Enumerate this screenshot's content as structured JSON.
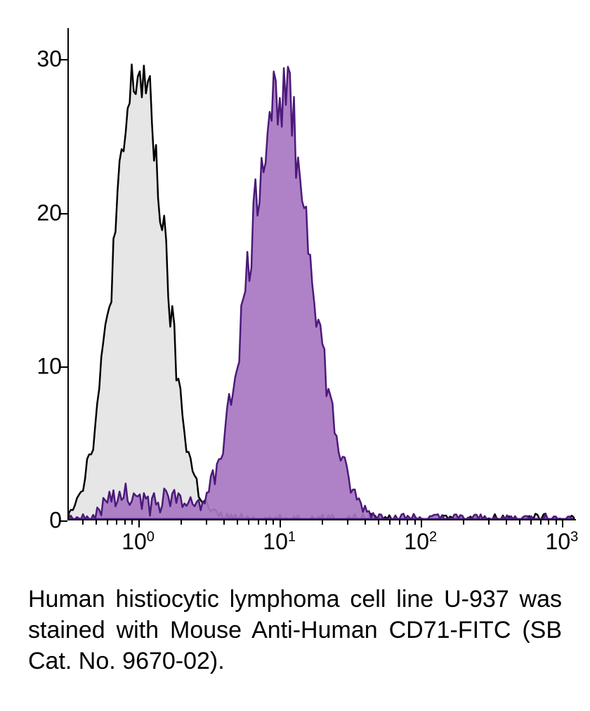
{
  "chart": {
    "type": "histogram",
    "background_color": "#ffffff",
    "axis_color": "#000000",
    "axis_width": 2,
    "y_axis": {
      "min": 0,
      "max": 32,
      "ticks": [
        0,
        10,
        20,
        30
      ],
      "label_fontsize": 32,
      "label_color": "#000000"
    },
    "x_axis": {
      "type": "log",
      "min_exp": -0.5,
      "max_exp": 3.1,
      "major_ticks_exp": [
        0,
        1,
        2,
        3
      ],
      "major_labels": [
        "10",
        "10",
        "10",
        "10"
      ],
      "major_sup": [
        "0",
        "1",
        "2",
        "3"
      ],
      "label_fontsize": 32,
      "label_color": "#000000"
    },
    "series": [
      {
        "name": "control",
        "stroke": "#000000",
        "stroke_width": 2.5,
        "fill": "#e6e6e6",
        "fill_opacity": 1.0,
        "center_exp": 0.0,
        "sigma_exp": 0.18,
        "height": 29,
        "noise": 2.5
      },
      {
        "name": "stained",
        "stroke": "#4b1a7a",
        "stroke_width": 2.5,
        "fill": "#a877c2",
        "fill_opacity": 0.92,
        "center_exp": 1.0,
        "sigma_exp": 0.22,
        "height": 28,
        "noise": 2.5,
        "tail_low_level": 1.2,
        "tail_low_start_exp": -0.3,
        "tail_low_end_exp": 0.55
      }
    ]
  },
  "caption_parts": {
    "p1": "Human histiocytic lymphoma cell line U-937 was stained with Mouse Anti-Human CD71-FITC (SB Cat. No. 9670-02)."
  }
}
